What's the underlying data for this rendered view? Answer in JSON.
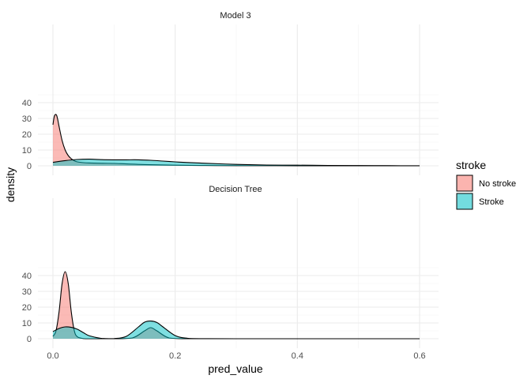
{
  "chart_data": {
    "type": "area",
    "subtype": "faceted density plot",
    "xlabel": "pred_value",
    "ylabel": "density",
    "xlim": [
      0,
      0.6
    ],
    "ylim": [
      0,
      45
    ],
    "xticks": [
      "0.0",
      "0.2",
      "0.4",
      "0.6"
    ],
    "yticks": [
      "0",
      "10",
      "20",
      "30",
      "40"
    ],
    "grid": true,
    "legend": {
      "title": "stroke",
      "placement": "right",
      "entries": [
        {
          "label": "No stroke",
          "color": "#F8766D"
        },
        {
          "label": "Stroke",
          "color": "#00BFC4"
        }
      ]
    },
    "panels": [
      {
        "title": "Model 3",
        "series": [
          {
            "name": "No stroke",
            "color": "#F8766D",
            "x": [
              0.0,
              0.002,
              0.004,
              0.006,
              0.008,
              0.01,
              0.015,
              0.02,
              0.025,
              0.03,
              0.035,
              0.04,
              0.05,
              0.06,
              0.08,
              0.1,
              0.12,
              0.15,
              0.2,
              0.25,
              0.3,
              0.4,
              0.5,
              0.6
            ],
            "y": [
              26,
              31,
              32.5,
              32,
              29,
              25,
              16,
              10,
              6.5,
              4.5,
              3.2,
              2.5,
              2.0,
              1.8,
              1.6,
              1.5,
              1.2,
              0.8,
              0.4,
              0.2,
              0.1,
              0.05,
              0.02,
              0
            ]
          },
          {
            "name": "Stroke",
            "color": "#00BFC4",
            "x": [
              0.0,
              0.02,
              0.04,
              0.06,
              0.08,
              0.1,
              0.12,
              0.14,
              0.16,
              0.18,
              0.2,
              0.22,
              0.25,
              0.3,
              0.35,
              0.4,
              0.45,
              0.5,
              0.55,
              0.6
            ],
            "y": [
              2.2,
              3.3,
              4.0,
              4.2,
              3.9,
              3.8,
              3.8,
              3.8,
              3.5,
              3.0,
              2.5,
              2.1,
              1.6,
              0.9,
              0.5,
              0.4,
              0.25,
              0.15,
              0.08,
              0.05
            ]
          }
        ]
      },
      {
        "title": "Decision Tree",
        "series": [
          {
            "name": "No stroke",
            "color": "#F8766D",
            "x": [
              0.0,
              0.005,
              0.01,
              0.015,
              0.02,
              0.025,
              0.03,
              0.035,
              0.04,
              0.05,
              0.06,
              0.1,
              0.13,
              0.15,
              0.16,
              0.17,
              0.19,
              0.22,
              0.3,
              0.4,
              0.5,
              0.6
            ],
            "y": [
              1.5,
              5,
              17,
              35,
              42.5,
              35,
              17,
              5,
              1.2,
              0.1,
              0,
              0,
              0.5,
              5,
              7,
              5,
              0.5,
              0,
              0,
              0,
              0,
              0
            ]
          },
          {
            "name": "Stroke",
            "color": "#00BFC4",
            "x": [
              0.0,
              0.01,
              0.02,
              0.03,
              0.04,
              0.05,
              0.06,
              0.08,
              0.1,
              0.12,
              0.14,
              0.15,
              0.16,
              0.17,
              0.18,
              0.2,
              0.22,
              0.25,
              0.3,
              0.4,
              0.5,
              0.6
            ],
            "y": [
              4.5,
              6.5,
              7.5,
              7.2,
              6.0,
              3.8,
              1.8,
              0.2,
              0.1,
              1.5,
              7.5,
              10.5,
              11.2,
              10.3,
              7.5,
              2.0,
              0.3,
              0.05,
              0,
              0,
              0,
              0
            ]
          }
        ]
      }
    ]
  }
}
